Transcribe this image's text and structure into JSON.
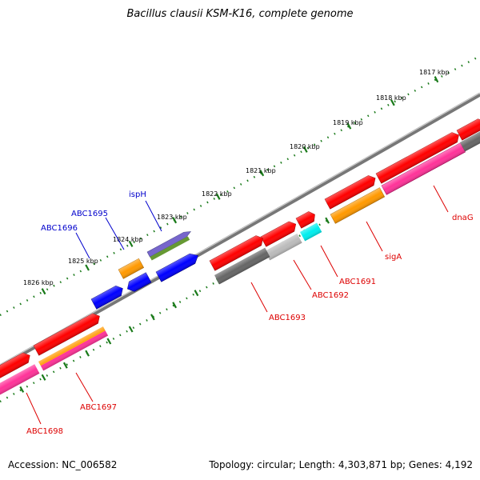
{
  "title": "Bacillus clausii KSM-K16, complete genome",
  "footer": {
    "accession": "Accession: NC_006582",
    "topology": "Topology: circular; Length: 4,303,871 bp; Genes: 4,192"
  },
  "colors": {
    "background": "#ffffff",
    "backbone": "#888888",
    "tick_marks": "#1a7a1a",
    "cds_forward": "#ff0000",
    "cds_reverse_blue": "#0000ff",
    "gene_ispH": "#7766cc",
    "gene_sigA_orange": "#ff9900",
    "gene_dnaG_pink": "#ff3399",
    "gene_grey_dark": "#666666",
    "gene_grey_light": "#bbbbbb",
    "gene_cyan": "#00eeee",
    "gene_olive": "#669933",
    "label_reverse_strand": "#0000cc",
    "label_forward_strand": "#dd0000"
  },
  "scale_ticks": [
    "1817 kbp",
    "1818 kbp",
    "1819 kbp",
    "1820 kbp",
    "1821 kbp",
    "1822 kbp",
    "1823 kbp",
    "1824 kbp",
    "1825 kbp",
    "1826 kbp"
  ],
  "gene_labels": [
    {
      "name": "ispH",
      "strand": "reverse"
    },
    {
      "name": "ABC1695",
      "strand": "reverse"
    },
    {
      "name": "ABC1696",
      "strand": "reverse"
    },
    {
      "name": "dnaG",
      "strand": "forward"
    },
    {
      "name": "sigA",
      "strand": "forward"
    },
    {
      "name": "ABC1691",
      "strand": "forward"
    },
    {
      "name": "ABC1692",
      "strand": "forward"
    },
    {
      "name": "ABC1693",
      "strand": "forward"
    },
    {
      "name": "ABC1697",
      "strand": "forward"
    },
    {
      "name": "ABC1698",
      "strand": "forward"
    }
  ]
}
